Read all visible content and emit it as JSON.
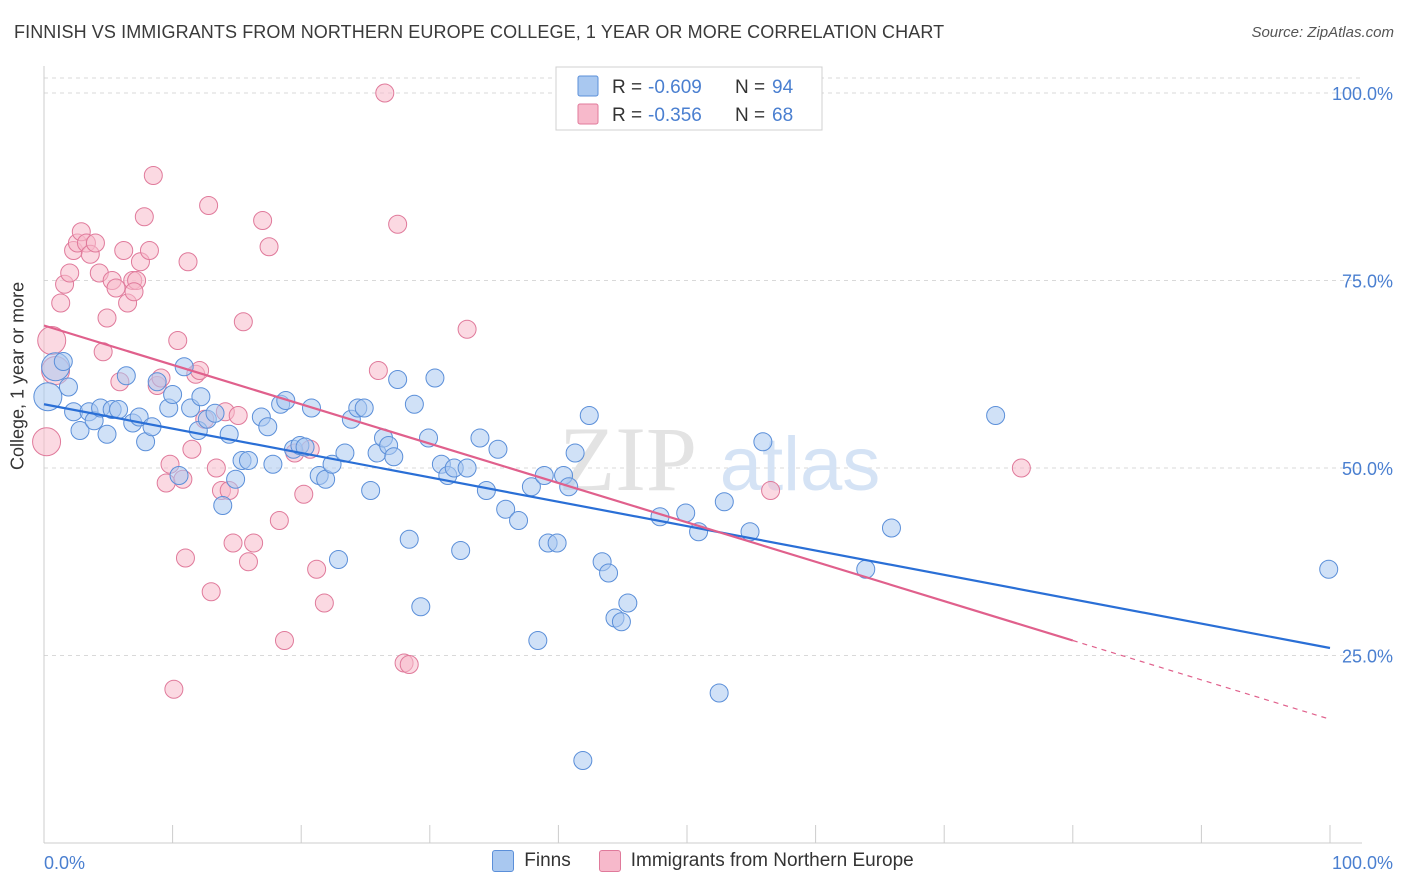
{
  "title": "FINNISH VS IMMIGRANTS FROM NORTHERN EUROPE COLLEGE, 1 YEAR OR MORE CORRELATION CHART",
  "source": "Source: ZipAtlas.com",
  "watermark": {
    "zip": "ZIP",
    "atlas": "atlas"
  },
  "colors": {
    "blue_fill": "#a9c8f0",
    "blue_stroke": "#5b8fd9",
    "blue_line": "#2a6fd6",
    "pink_fill": "#f7b9cb",
    "pink_stroke": "#e07a9b",
    "pink_line": "#e0608c",
    "axis_text": "#4a7fd0",
    "grid": "#d9d9d9"
  },
  "legend": {
    "r_label": "R =",
    "n_label": "N =",
    "blue": {
      "r": "-0.609",
      "n": "94"
    },
    "pink": {
      "r": "-0.356",
      "n": "68"
    }
  },
  "bottom_legend": {
    "blue": "Finns",
    "pink": "Immigrants from Northern Europe"
  },
  "chart_data": {
    "type": "scatter",
    "title": "FINNISH VS IMMIGRANTS FROM NORTHERN EUROPE COLLEGE, 1 YEAR OR MORE CORRELATION CHART",
    "xlabel": "",
    "ylabel": "College, 1 year or more",
    "xlim": [
      0,
      100
    ],
    "ylim": [
      0,
      102
    ],
    "x_ticks_labels": [
      "0.0%",
      "100.0%"
    ],
    "y_ticks": [
      25,
      50,
      75,
      100
    ],
    "y_tick_labels": [
      "25.0%",
      "50.0%",
      "75.0%",
      "100.0%"
    ],
    "series": [
      {
        "name": "Finns",
        "color": "blue",
        "r": -0.609,
        "n": 94,
        "trend": {
          "x0": 0,
          "y0": 58.5,
          "x1": 100,
          "y1": 26.0
        },
        "points": [
          [
            0.3,
            59.5
          ],
          [
            0.9,
            63.5
          ],
          [
            1.5,
            64.2
          ],
          [
            1.9,
            60.8
          ],
          [
            2.3,
            57.5
          ],
          [
            2.8,
            55.0
          ],
          [
            3.5,
            57.5
          ],
          [
            3.9,
            56.3
          ],
          [
            4.4,
            58.0
          ],
          [
            4.9,
            54.5
          ],
          [
            5.3,
            57.8
          ],
          [
            5.8,
            57.8
          ],
          [
            6.4,
            62.3
          ],
          [
            6.9,
            56.0
          ],
          [
            7.4,
            56.8
          ],
          [
            7.9,
            53.5
          ],
          [
            8.4,
            55.5
          ],
          [
            8.8,
            61.5
          ],
          [
            9.7,
            58.0
          ],
          [
            10.0,
            59.8
          ],
          [
            10.5,
            49.0
          ],
          [
            10.9,
            63.5
          ],
          [
            11.4,
            58.0
          ],
          [
            12.0,
            55.0
          ],
          [
            12.2,
            59.5
          ],
          [
            12.7,
            56.5
          ],
          [
            13.3,
            57.3
          ],
          [
            13.9,
            45.0
          ],
          [
            14.4,
            54.5
          ],
          [
            14.9,
            48.5
          ],
          [
            15.4,
            51.0
          ],
          [
            15.9,
            51.0
          ],
          [
            16.9,
            56.8
          ],
          [
            17.4,
            55.5
          ],
          [
            17.8,
            50.5
          ],
          [
            18.4,
            58.5
          ],
          [
            18.8,
            59.0
          ],
          [
            19.4,
            52.5
          ],
          [
            19.9,
            53.0
          ],
          [
            20.3,
            52.8
          ],
          [
            20.8,
            58.0
          ],
          [
            21.4,
            49.0
          ],
          [
            21.9,
            48.5
          ],
          [
            22.4,
            50.5
          ],
          [
            22.9,
            37.8
          ],
          [
            23.4,
            52.0
          ],
          [
            23.9,
            56.5
          ],
          [
            24.4,
            58.0
          ],
          [
            24.9,
            58.0
          ],
          [
            25.4,
            47.0
          ],
          [
            25.9,
            52.0
          ],
          [
            26.4,
            54.0
          ],
          [
            26.8,
            53.0
          ],
          [
            27.2,
            51.5
          ],
          [
            27.5,
            61.8
          ],
          [
            28.4,
            40.5
          ],
          [
            28.8,
            58.5
          ],
          [
            29.3,
            31.5
          ],
          [
            29.9,
            54.0
          ],
          [
            30.4,
            62.0
          ],
          [
            30.9,
            50.5
          ],
          [
            31.4,
            49.0
          ],
          [
            32.4,
            39.0
          ],
          [
            31.9,
            50.0
          ],
          [
            32.9,
            50.0
          ],
          [
            33.9,
            54.0
          ],
          [
            34.4,
            47.0
          ],
          [
            35.3,
            52.5
          ],
          [
            35.9,
            44.5
          ],
          [
            36.9,
            43.0
          ],
          [
            37.9,
            47.5
          ],
          [
            38.4,
            27.0
          ],
          [
            38.9,
            49.0
          ],
          [
            39.2,
            40.0
          ],
          [
            39.9,
            40.0
          ],
          [
            40.4,
            49.0
          ],
          [
            40.8,
            47.5
          ],
          [
            41.3,
            52.0
          ],
          [
            41.9,
            11.0
          ],
          [
            42.4,
            57.0
          ],
          [
            43.4,
            37.5
          ],
          [
            43.9,
            36.0
          ],
          [
            44.4,
            30.0
          ],
          [
            44.9,
            29.5
          ],
          [
            45.4,
            32.0
          ],
          [
            47.9,
            43.5
          ],
          [
            49.9,
            44.0
          ],
          [
            50.9,
            41.5
          ],
          [
            52.9,
            45.5
          ],
          [
            52.5,
            20.0
          ],
          [
            54.9,
            41.5
          ],
          [
            55.9,
            53.5
          ],
          [
            63.9,
            36.5
          ],
          [
            65.9,
            42.0
          ],
          [
            74.0,
            57.0
          ],
          [
            99.9,
            36.5
          ]
        ]
      },
      {
        "name": "Immigrants from Northern Europe",
        "color": "pink",
        "r": -0.356,
        "n": 68,
        "trend": {
          "x0": 0,
          "y0": 69.0,
          "x1": 80,
          "y1": 27.0,
          "dashed_to": {
            "x": 100,
            "y": 16.5
          }
        },
        "points": [
          [
            0.2,
            53.5
          ],
          [
            0.6,
            67.0
          ],
          [
            0.9,
            63.0
          ],
          [
            1.3,
            72.0
          ],
          [
            1.6,
            74.5
          ],
          [
            2.0,
            76.0
          ],
          [
            2.3,
            79.0
          ],
          [
            2.6,
            80.0
          ],
          [
            2.9,
            81.5
          ],
          [
            3.3,
            80.0
          ],
          [
            3.6,
            78.5
          ],
          [
            4.0,
            80.0
          ],
          [
            4.3,
            76.0
          ],
          [
            4.6,
            65.5
          ],
          [
            4.9,
            70.0
          ],
          [
            5.3,
            75.0
          ],
          [
            5.6,
            74.0
          ],
          [
            5.9,
            61.5
          ],
          [
            6.2,
            79.0
          ],
          [
            6.5,
            72.0
          ],
          [
            6.9,
            75.0
          ],
          [
            7.2,
            75.0
          ],
          [
            7.5,
            77.5
          ],
          [
            7.8,
            83.5
          ],
          [
            8.2,
            79.0
          ],
          [
            8.5,
            89.0
          ],
          [
            8.8,
            61.0
          ],
          [
            9.1,
            62.0
          ],
          [
            9.5,
            48.0
          ],
          [
            9.8,
            50.5
          ],
          [
            10.1,
            20.5
          ],
          [
            10.4,
            67.0
          ],
          [
            10.8,
            48.5
          ],
          [
            11.0,
            38.0
          ],
          [
            11.2,
            77.5
          ],
          [
            11.5,
            52.5
          ],
          [
            11.8,
            62.5
          ],
          [
            12.1,
            63.0
          ],
          [
            12.5,
            56.5
          ],
          [
            12.8,
            85.0
          ],
          [
            13.0,
            33.5
          ],
          [
            13.4,
            50.0
          ],
          [
            13.8,
            47.0
          ],
          [
            14.1,
            57.5
          ],
          [
            14.4,
            47.0
          ],
          [
            14.7,
            40.0
          ],
          [
            15.1,
            57.0
          ],
          [
            15.5,
            69.5
          ],
          [
            15.9,
            37.5
          ],
          [
            16.3,
            40.0
          ],
          [
            17.0,
            83.0
          ],
          [
            17.5,
            79.5
          ],
          [
            18.3,
            43.0
          ],
          [
            18.7,
            27.0
          ],
          [
            19.5,
            52.0
          ],
          [
            20.2,
            46.5
          ],
          [
            20.7,
            52.5
          ],
          [
            21.2,
            36.5
          ],
          [
            21.8,
            32.0
          ],
          [
            26.0,
            63.0
          ],
          [
            26.5,
            100.0
          ],
          [
            27.5,
            82.5
          ],
          [
            28.0,
            24.0
          ],
          [
            28.4,
            23.8
          ],
          [
            32.9,
            68.5
          ],
          [
            56.5,
            47.0
          ],
          [
            76.0,
            50.0
          ],
          [
            7.0,
            73.5
          ]
        ]
      }
    ]
  }
}
